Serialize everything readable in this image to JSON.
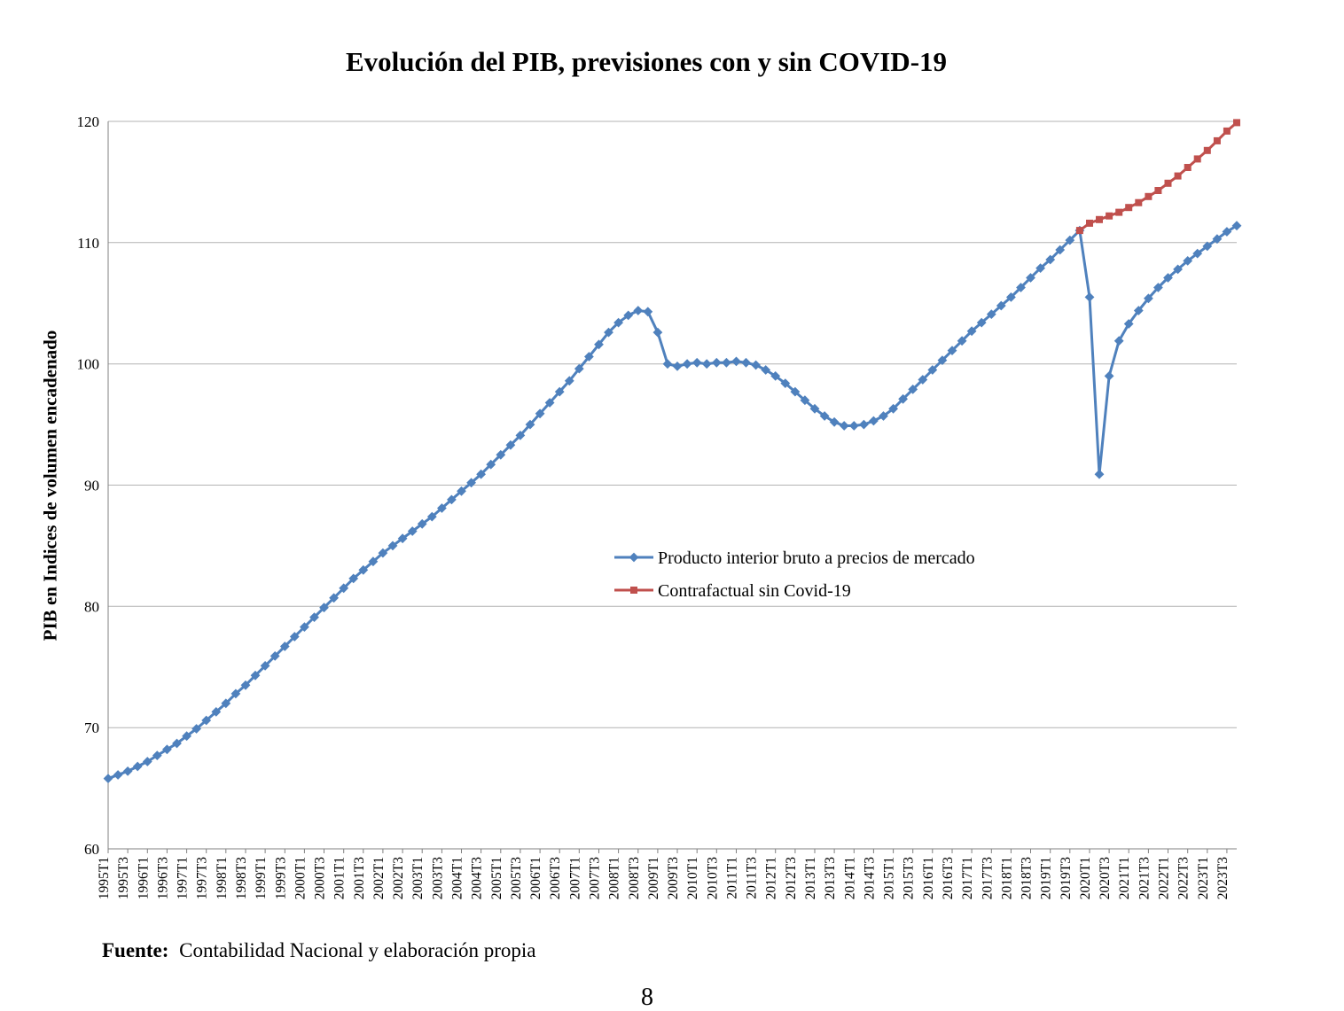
{
  "page": {
    "number": "8"
  },
  "footer": {
    "source_label": "Fuente:",
    "source_text": "Contabilidad Nacional y elaboración propia"
  },
  "chart_data": {
    "type": "line",
    "title": "Evolución del PIB, previsiones con y sin COVID-19",
    "xlabel": "",
    "ylabel": "PIB en Indices de volumen encadenado",
    "ylim": [
      60,
      120
    ],
    "yticks": [
      60,
      70,
      80,
      90,
      100,
      110,
      120
    ],
    "grid": "horizontal",
    "legend_position": "inside-center-right",
    "n_points": 116,
    "x_unit": "quarter",
    "x_tick_labels": [
      "1995T1",
      "1995T3",
      "1996T1",
      "1996T3",
      "1997T1",
      "1997T3",
      "1998T1",
      "1998T3",
      "1999T1",
      "1999T3",
      "2000T1",
      "2000T3",
      "2001T1",
      "2001T3",
      "2002T1",
      "2002T3",
      "2003T1",
      "2003T3",
      "2004T1",
      "2004T3",
      "2005T1",
      "2005T3",
      "2006T1",
      "2006T3",
      "2007T1",
      "2007T3",
      "2008T1",
      "2008T3",
      "2009T1",
      "2009T3",
      "2010T1",
      "2010T3",
      "2011T1",
      "2011T3",
      "2012T1",
      "2012T3",
      "2013T1",
      "2013T3",
      "2014T1",
      "2014T3",
      "2015T1",
      "2015T3",
      "2016T1",
      "2016T3",
      "2017T1",
      "2017T3",
      "2018T1",
      "2018T3",
      "2019T1",
      "2019T3",
      "2020T1",
      "2020T3",
      "2021T1",
      "2021T3",
      "2022T1",
      "2022T3",
      "2023T1",
      "2023T3"
    ],
    "series": [
      {
        "name": "Producto interior bruto a precios de mercado",
        "color": "#4F81BD",
        "marker": "diamond",
        "start_index": 0,
        "values": [
          65.8,
          66.1,
          66.4,
          66.8,
          67.2,
          67.7,
          68.2,
          68.7,
          69.3,
          69.9,
          70.6,
          71.3,
          72.0,
          72.8,
          73.5,
          74.3,
          75.1,
          75.9,
          76.7,
          77.5,
          78.3,
          79.1,
          79.9,
          80.7,
          81.5,
          82.3,
          83.0,
          83.7,
          84.4,
          85.0,
          85.6,
          86.2,
          86.8,
          87.4,
          88.1,
          88.8,
          89.5,
          90.2,
          90.9,
          91.7,
          92.5,
          93.3,
          94.1,
          95.0,
          95.9,
          96.8,
          97.7,
          98.6,
          99.6,
          100.6,
          101.6,
          102.6,
          103.4,
          104.0,
          104.4,
          104.3,
          102.6,
          100.0,
          99.8,
          100.0,
          100.1,
          100.0,
          100.1,
          100.1,
          100.2,
          100.1,
          99.9,
          99.5,
          99.0,
          98.4,
          97.7,
          97.0,
          96.3,
          95.7,
          95.2,
          94.9,
          94.9,
          95.0,
          95.3,
          95.7,
          96.3,
          97.1,
          97.9,
          98.7,
          99.5,
          100.3,
          101.1,
          101.9,
          102.7,
          103.4,
          104.1,
          104.8,
          105.5,
          106.3,
          107.1,
          107.9,
          108.6,
          109.4,
          110.2,
          111.0,
          105.5,
          90.9,
          99.0,
          101.9,
          103.3,
          104.4,
          105.4,
          106.3,
          107.1,
          107.8,
          108.5,
          109.1,
          109.7,
          110.3,
          110.9,
          111.4
        ]
      },
      {
        "name": "Contrafactual sin Covid-19",
        "color": "#C0504D",
        "marker": "square",
        "start_index": 99,
        "values": [
          111.0,
          111.6,
          111.9,
          112.2,
          112.5,
          112.9,
          113.3,
          113.8,
          114.3,
          114.9,
          115.5,
          116.2,
          116.9,
          117.6,
          118.4,
          119.2,
          119.9
        ]
      }
    ]
  }
}
